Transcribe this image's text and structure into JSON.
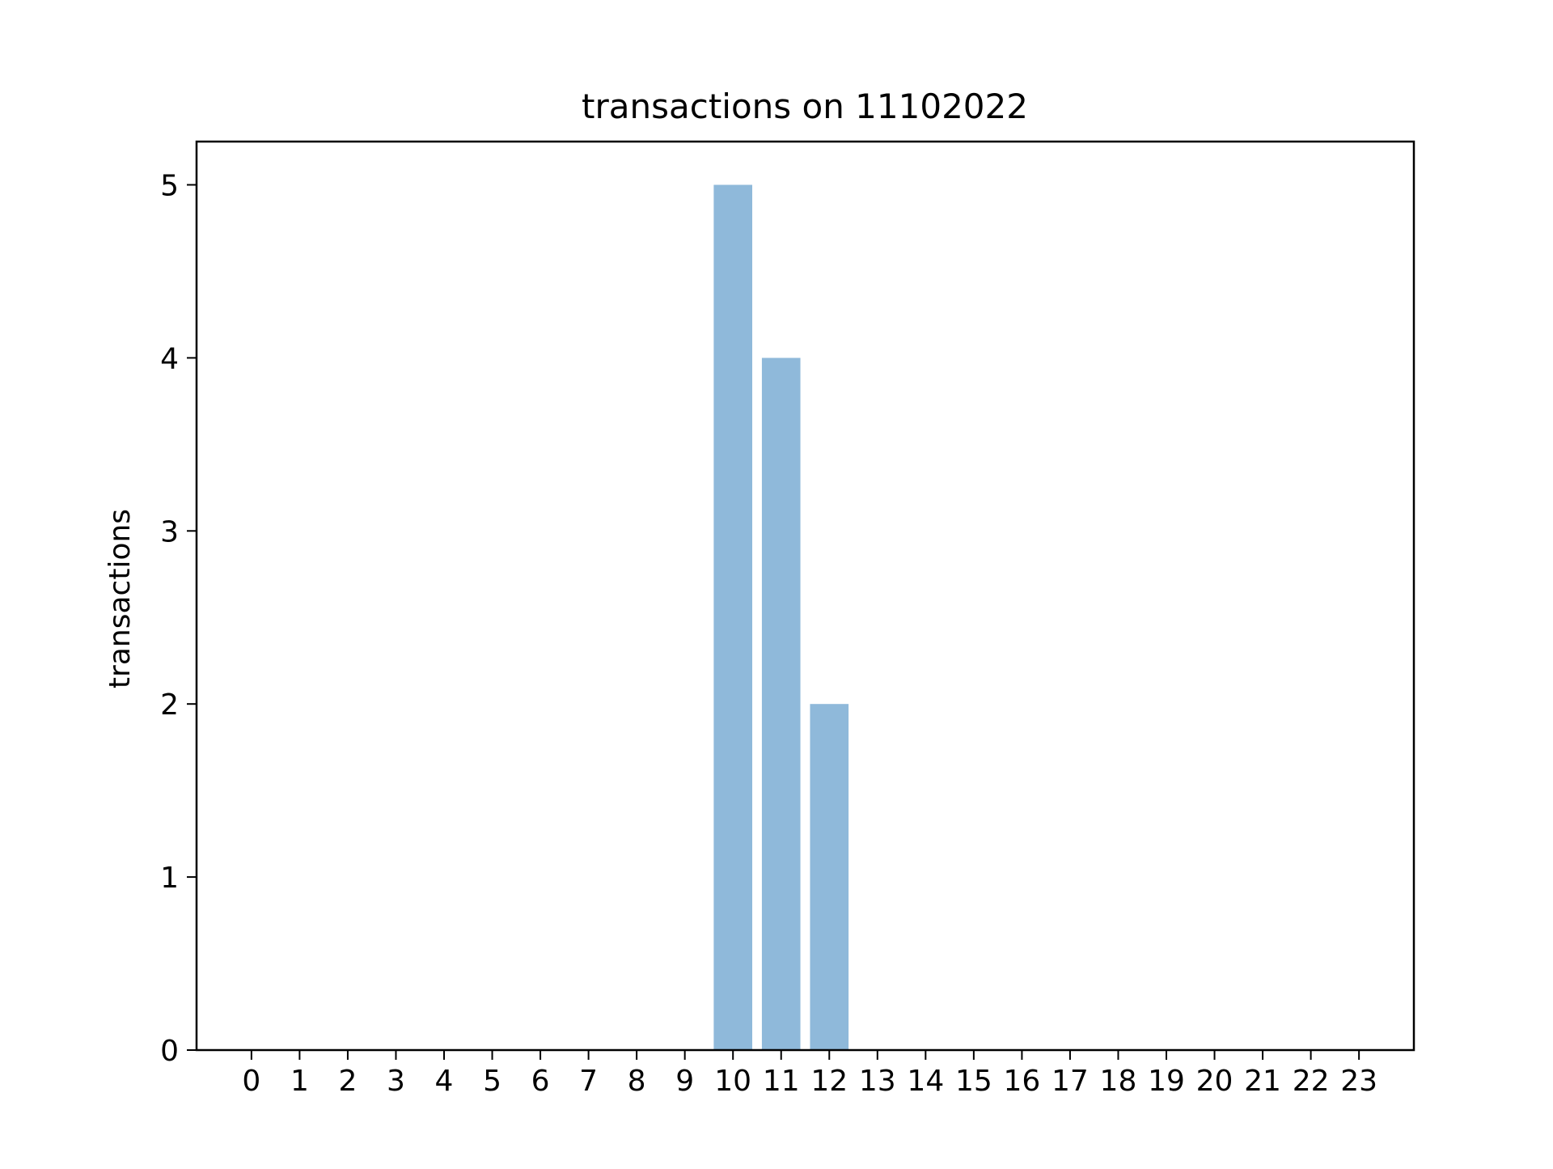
{
  "chart_data": {
    "type": "bar",
    "title": "transactions on 11102022",
    "xlabel": "",
    "ylabel": "transactions",
    "categories": [
      "0",
      "1",
      "2",
      "3",
      "4",
      "5",
      "6",
      "7",
      "8",
      "9",
      "10",
      "11",
      "12",
      "13",
      "14",
      "15",
      "16",
      "17",
      "18",
      "19",
      "20",
      "21",
      "22",
      "23"
    ],
    "values": [
      0,
      0,
      0,
      0,
      0,
      0,
      0,
      0,
      0,
      0,
      5,
      4,
      2,
      0,
      0,
      0,
      0,
      0,
      0,
      0,
      0,
      0,
      0,
      0
    ],
    "y_ticks": [
      "0",
      "1",
      "2",
      "3",
      "4",
      "5"
    ],
    "ylim": [
      0,
      5.25
    ],
    "xlim": [
      -1.14,
      24.14
    ],
    "grid": false,
    "legend": "none",
    "bar_color": "#8fb9da"
  }
}
